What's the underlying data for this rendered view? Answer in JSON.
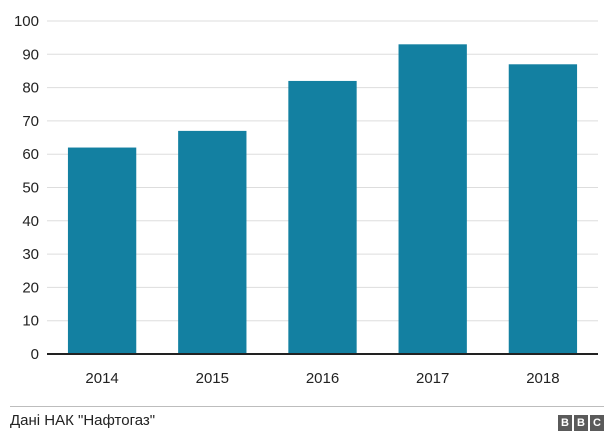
{
  "chart_data": {
    "type": "bar",
    "title": "",
    "xlabel": "",
    "ylabel": "",
    "categories": [
      "2014",
      "2015",
      "2016",
      "2017",
      "2018"
    ],
    "values": [
      62,
      67,
      82,
      93,
      87
    ],
    "ylim": [
      0,
      100
    ],
    "yticks": [
      0,
      10,
      20,
      30,
      40,
      50,
      60,
      70,
      80,
      90,
      100
    ],
    "grid": "horizontal",
    "colors": {
      "bar": "#1380a1",
      "grid": "#dddddd",
      "axis": "#222222"
    }
  },
  "footer": {
    "source": "Дані НАК \"Нафтогаз\"",
    "logo": "BBC"
  }
}
